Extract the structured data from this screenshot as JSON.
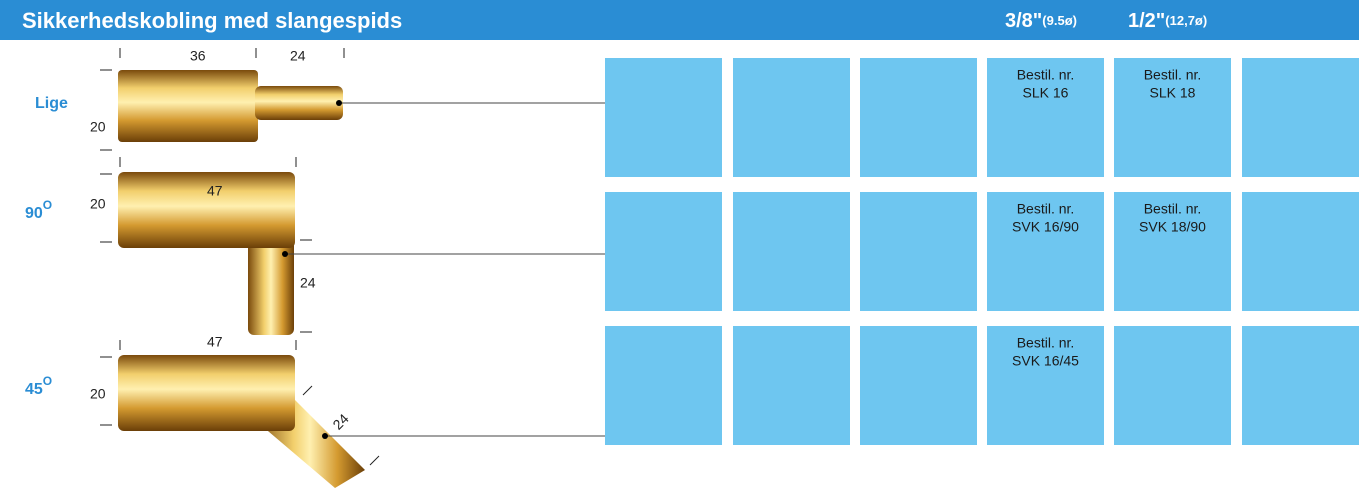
{
  "header": {
    "title": "Sikkerhedskobling med slangespids",
    "sizes": [
      {
        "label": "3/8\"",
        "sub": "(9.5ø)"
      },
      {
        "label": "1/2\"",
        "sub": "(12,7ø)"
      }
    ]
  },
  "rows": [
    {
      "label": "Lige",
      "dims": [
        "36",
        "24",
        "20"
      ],
      "orders": [
        {
          "heading": "Bestil. nr.",
          "code": "SLK 16"
        },
        {
          "heading": "Bestil. nr.",
          "code": "SLK 18"
        }
      ]
    },
    {
      "label": "90",
      "sup": "O",
      "dims": [
        "47",
        "20",
        "24"
      ],
      "orders": [
        {
          "heading": "Bestil. nr.",
          "code": "SVK 16/90"
        },
        {
          "heading": "Bestil. nr.",
          "code": "SVK 18/90"
        }
      ]
    },
    {
      "label": "45",
      "sup": "O",
      "dims": [
        "47",
        "20",
        "24"
      ],
      "orders": [
        {
          "heading": "Bestil. nr.",
          "code": "SVK 16/45"
        }
      ]
    }
  ]
}
